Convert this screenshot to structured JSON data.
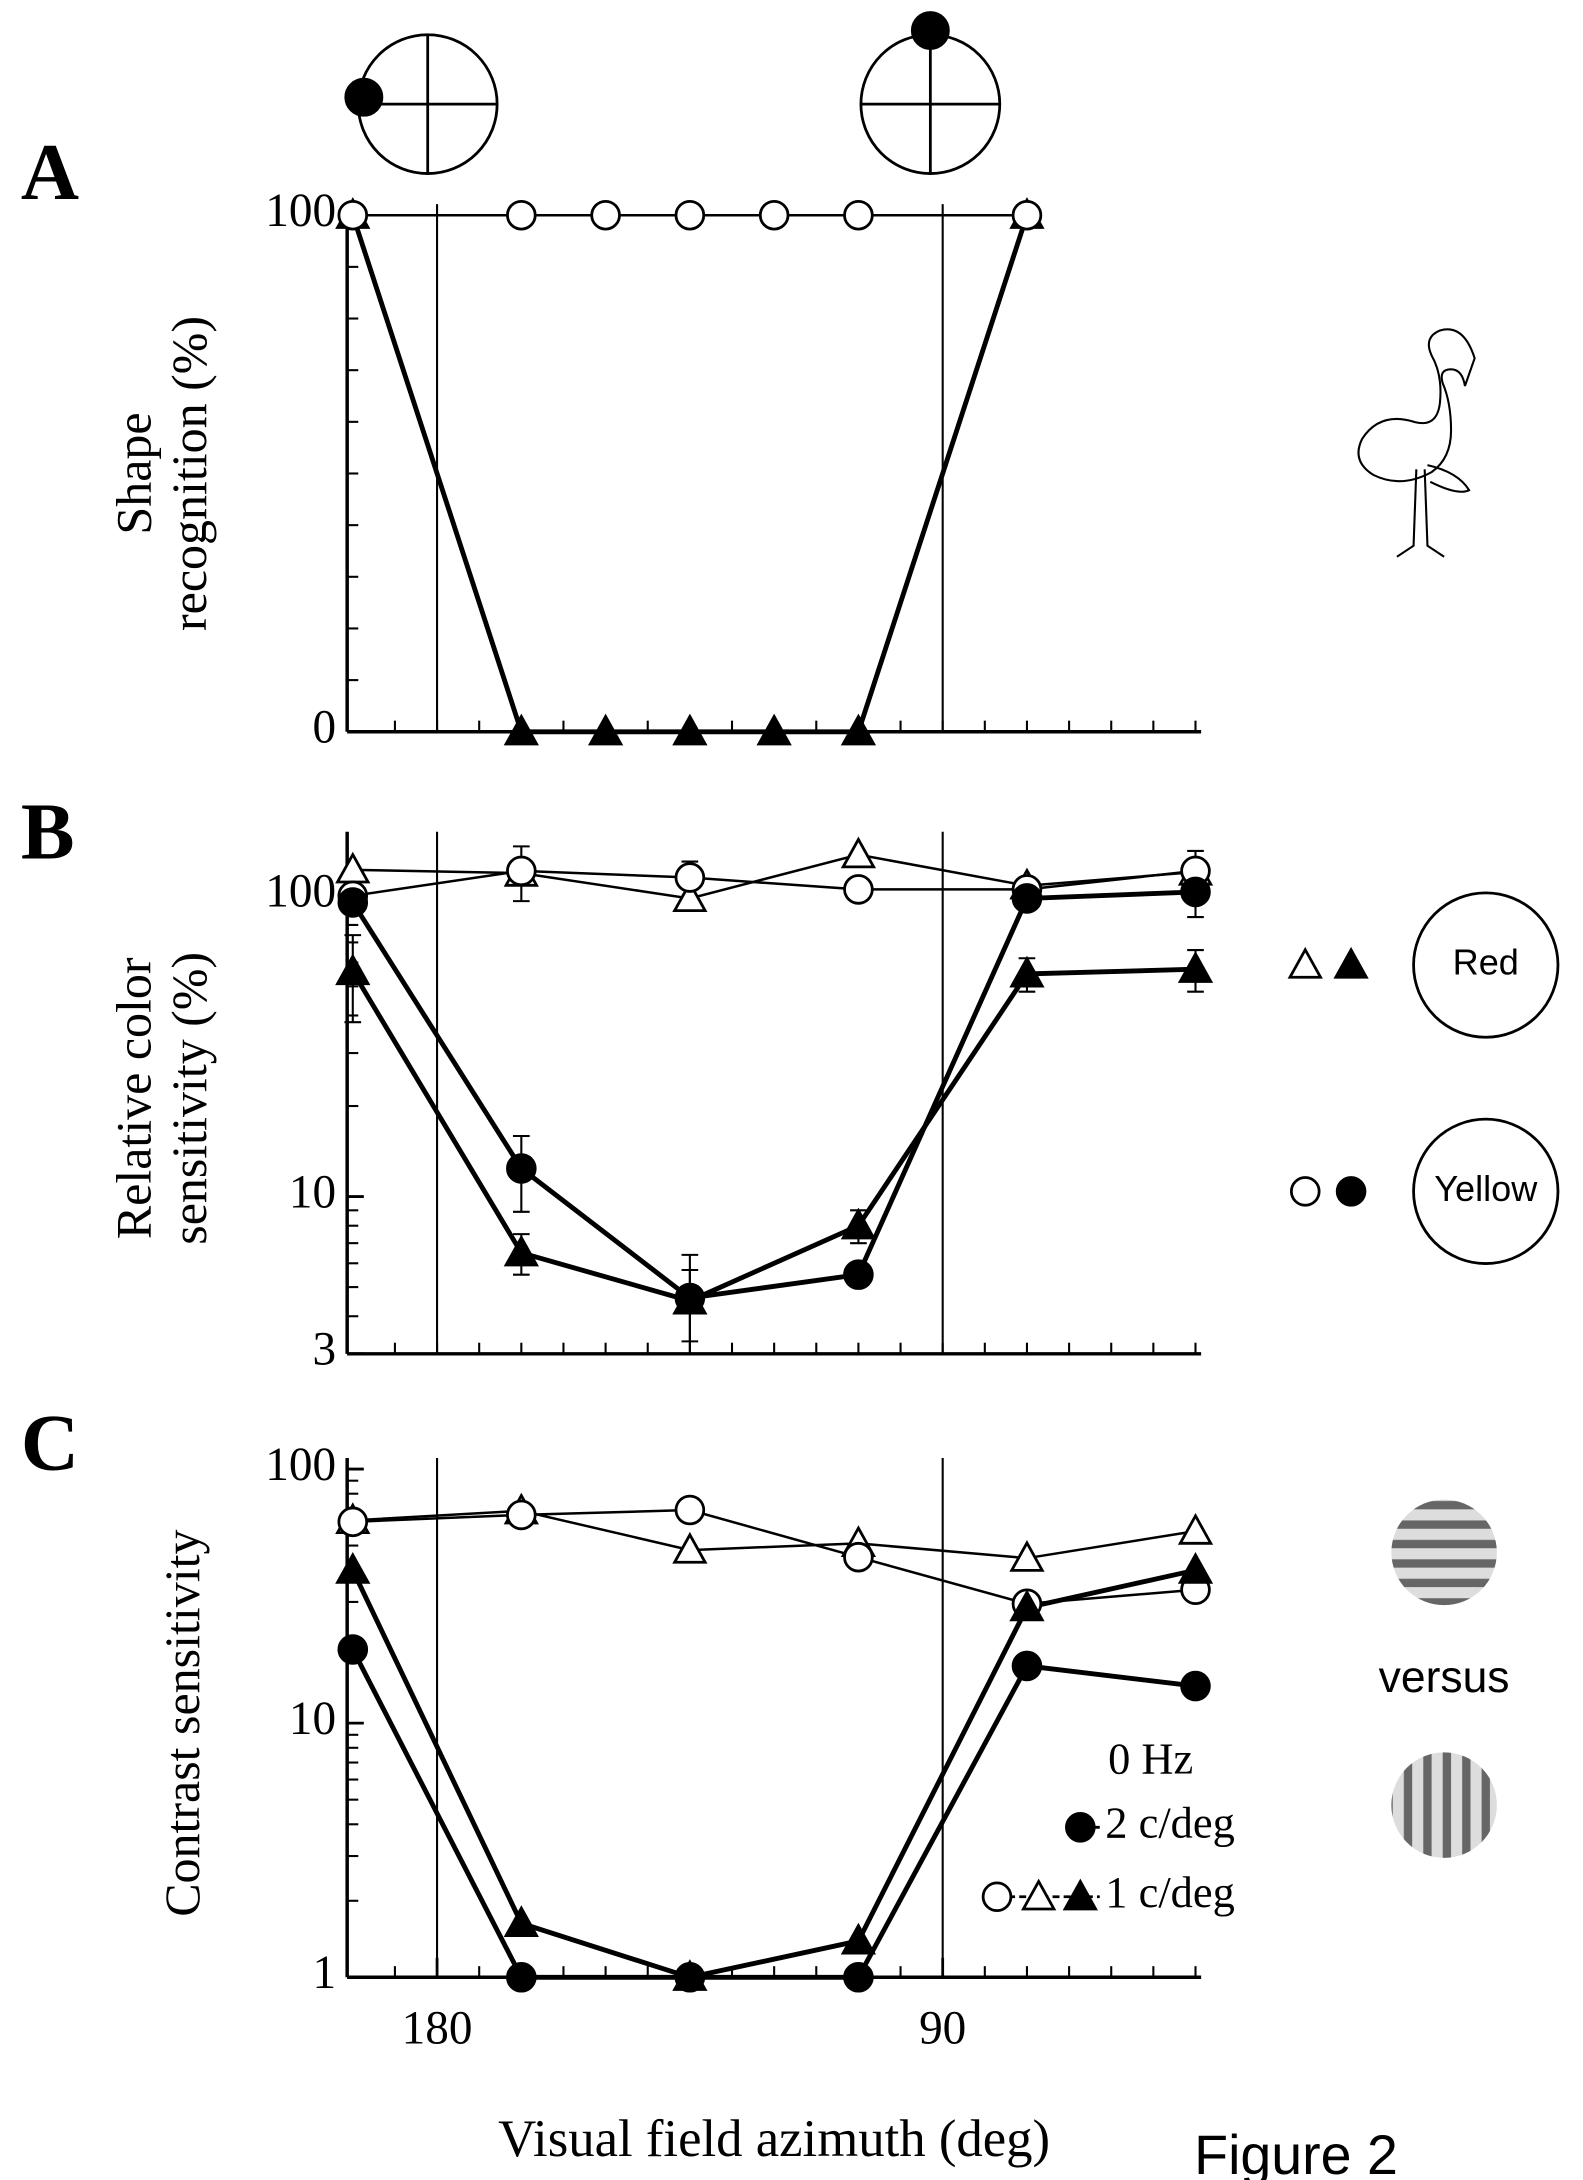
{
  "figure_label": "Figure 2",
  "chart_data": [
    {
      "type": "line",
      "letter": "A",
      "ylabel": [
        "Shape",
        "recognition (%)"
      ],
      "xlim": [
        196,
        44
      ],
      "ylim": [
        0,
        100
      ],
      "yscale": "linear",
      "yticks": [
        0,
        100
      ],
      "yminor": [
        10,
        20,
        30,
        40,
        50,
        60,
        70,
        80,
        90
      ],
      "xminor": [
        187.5,
        180,
        172.5,
        165,
        157.5,
        150,
        142.5,
        135,
        127.5,
        120,
        112.5,
        105,
        97.5,
        90,
        82.5,
        75,
        67.5,
        60,
        52.5,
        45
      ],
      "vlines": [
        180,
        90
      ],
      "x": [
        195,
        165,
        150,
        135,
        120,
        105,
        75
      ],
      "series": [
        {
          "marker": "filled-triangle",
          "color": "#000",
          "values": [
            100,
            0,
            0,
            0,
            0,
            0,
            100
          ]
        },
        {
          "marker": "open-circle",
          "color": "#000",
          "values": [
            100,
            100,
            100,
            100,
            100,
            100,
            100
          ]
        }
      ]
    },
    {
      "type": "line",
      "letter": "B",
      "ylabel": [
        "Relative color",
        "sensitivity (%)"
      ],
      "xlim": [
        196,
        44
      ],
      "ylim": [
        3,
        150
      ],
      "yscale": "log",
      "yticks": [
        3,
        10,
        100
      ],
      "yminor": [
        4,
        5,
        6,
        7,
        8,
        9,
        20,
        30,
        40,
        50,
        60,
        70,
        80,
        90
      ],
      "xminor": [
        187.5,
        180,
        172.5,
        165,
        157.5,
        150,
        142.5,
        135,
        127.5,
        120,
        112.5,
        105,
        97.5,
        90,
        82.5,
        75,
        67.5,
        60,
        52.5,
        45
      ],
      "vlines": [
        180,
        90
      ],
      "x": [
        195,
        165,
        135,
        105,
        75,
        45
      ],
      "series": [
        {
          "marker": "open-triangle",
          "color": "#000",
          "values": [
            122,
            119,
            98,
            137,
            108,
            120
          ]
        },
        {
          "marker": "open-circle",
          "color": "#000",
          "values": [
            100,
            121,
            115,
            105,
            105,
            121
          ],
          "errors": [
            null,
            25,
            15,
            null,
            null,
            20
          ]
        },
        {
          "marker": "filled-triangle",
          "color": "#000",
          "values": [
            56,
            6.5,
            4.5,
            8,
            55,
            57
          ],
          "errors": [
            18,
            1,
            1.2,
            1,
            7,
            9
          ]
        },
        {
          "marker": "filled-circle",
          "color": "#000",
          "values": [
            95,
            12.4,
            4.6,
            5.5,
            98,
            103
          ],
          "errors": [
            null,
            3.5,
            1.8,
            null,
            null,
            18
          ]
        }
      ],
      "legend": [
        {
          "label": "Red",
          "markers": [
            "open-triangle",
            "filled-triangle"
          ]
        },
        {
          "label": "Yellow",
          "markers": [
            "open-circle",
            "filled-circle"
          ]
        }
      ]
    },
    {
      "type": "line",
      "letter": "C",
      "ylabel": [
        "Contrast sensitivity"
      ],
      "xlim": [
        196,
        44
      ],
      "ylim": [
        1,
        100
      ],
      "yscale": "log",
      "yticks": [
        1,
        10,
        100
      ],
      "yminor": [
        2,
        3,
        4,
        5,
        6,
        7,
        8,
        9,
        20,
        30,
        40,
        50,
        60,
        70,
        80,
        90
      ],
      "xminor": [
        187.5,
        180,
        172.5,
        165,
        157.5,
        150,
        142.5,
        135,
        127.5,
        120,
        112.5,
        105,
        97.5,
        90,
        82.5,
        75,
        67.5,
        60,
        52.5,
        45
      ],
      "vlines": [
        180,
        90
      ],
      "xticks": [
        180,
        90
      ],
      "xlabel": "Visual field azimuth (deg)",
      "x": [
        195,
        165,
        135,
        105,
        75,
        45
      ],
      "series": [
        {
          "marker": "open-triangle",
          "color": "#000",
          "values": [
            62.8,
            68.5,
            48,
            51,
            44.6,
            57
          ]
        },
        {
          "marker": "open-circle",
          "color": "#000",
          "values": [
            62,
            66,
            69,
            45,
            29.5,
            33.5
          ]
        },
        {
          "marker": "filled-triangle",
          "color": "#000",
          "values": [
            40,
            1.63,
            1,
            1.39,
            28.5,
            40
          ]
        },
        {
          "marker": "filled-circle",
          "color": "#000",
          "values": [
            19.5,
            1,
            1,
            1,
            16.8,
            14
          ]
        }
      ],
      "legend_title": "0 Hz",
      "legend": [
        {
          "label": "2 c/deg",
          "markers": [
            "filled-circle"
          ]
        },
        {
          "label": "1 c/deg",
          "markers": [
            "open-circle",
            "open-triangle",
            "filled-triangle"
          ]
        }
      ],
      "annotation": "versus"
    }
  ]
}
